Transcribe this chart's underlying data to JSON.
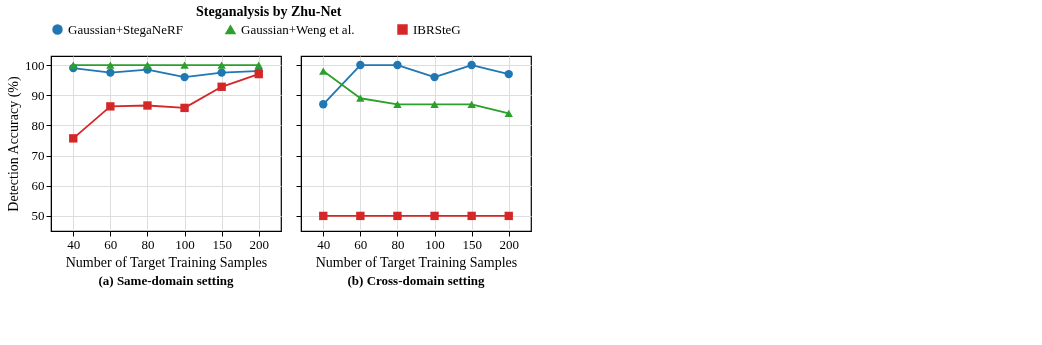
{
  "chart_data": [
    {
      "type": "line",
      "title": "Steganalysis by Zhu-Net",
      "subtitle": "(a) Same-domain setting",
      "xlabel": "Number of Target Training Samples",
      "ylabel": "Detection Accuracy (%)",
      "categories": [
        "40",
        "60",
        "80",
        "100",
        "150",
        "200"
      ],
      "ylim": [
        45,
        103
      ],
      "yticks": [
        50,
        60,
        70,
        80,
        90,
        100
      ],
      "grid": true,
      "legend": "top",
      "series": [
        {
          "name": "Gaussian+StegaNeRF",
          "color": "#1f77b4",
          "marker": "circle",
          "values": [
            99,
            97.5,
            98.5,
            96,
            97.5,
            98
          ]
        },
        {
          "name": "Gaussian+Weng et al.",
          "color": "#2ca02c",
          "marker": "triangle",
          "values": [
            100,
            100,
            100,
            100,
            100,
            100
          ]
        },
        {
          "name": "IBRSteG",
          "color": "#d62728",
          "marker": "square",
          "values": [
            75.7,
            86.3,
            86.6,
            85.8,
            92.8,
            97
          ]
        }
      ]
    },
    {
      "type": "line",
      "subtitle": "(b) Cross-domain setting",
      "xlabel": "Number of Target Training Samples",
      "categories": [
        "40",
        "60",
        "80",
        "100",
        "150",
        "200"
      ],
      "ylim": [
        45,
        103
      ],
      "yticks": [
        50,
        60,
        70,
        80,
        90,
        100
      ],
      "grid": true,
      "tick_labels": "x",
      "series": [
        {
          "name": "Gaussian+StegaNeRF",
          "color": "#1f77b4",
          "marker": "circle",
          "values": [
            87,
            100,
            100,
            96,
            100,
            97
          ]
        },
        {
          "name": "Gaussian+Weng et al.",
          "color": "#2ca02c",
          "marker": "triangle",
          "values": [
            98,
            89,
            87,
            87,
            87,
            84
          ]
        },
        {
          "name": "IBRSteG",
          "color": "#d62728",
          "marker": "square",
          "values": [
            50,
            50,
            50,
            50,
            50,
            50
          ]
        }
      ]
    }
  ]
}
